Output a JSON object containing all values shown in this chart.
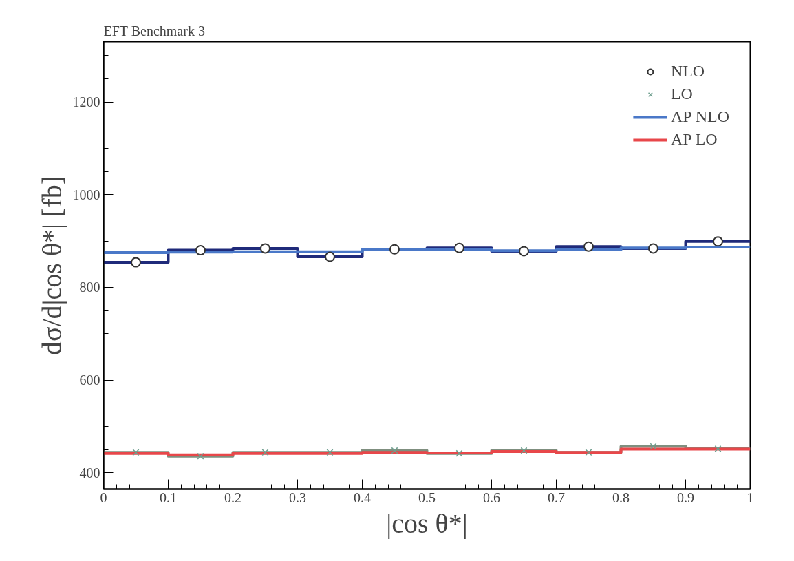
{
  "chart_data": {
    "type": "step",
    "title": "EFT Benchmark 3",
    "xlabel": "|cos θ*|",
    "ylabel": "dσ/d|cos θ*| [fb]",
    "xlim": [
      0,
      1
    ],
    "xticks": [
      0,
      0.1,
      0.2,
      0.3,
      0.4,
      0.5,
      0.6,
      0.7,
      0.8,
      0.9,
      1
    ],
    "ylim": [
      365,
      1330
    ],
    "yticks": [
      400,
      600,
      800,
      1000,
      1200
    ],
    "grid": false,
    "legend": "top right",
    "series": [
      {
        "color": "#1f2a7a",
        "x": [
          0,
          0.1,
          0.2,
          0.3,
          0.4,
          0.5,
          0.6,
          0.7,
          0.8,
          0.9,
          1
        ],
        "values": [
          854,
          880,
          884,
          866,
          882,
          885,
          878,
          888,
          884,
          899,
          899
        ]
      },
      {
        "color": "#7f8f7f",
        "x": [
          0,
          0.1,
          0.2,
          0.3,
          0.4,
          0.5,
          0.6,
          0.7,
          0.8,
          0.9,
          1
        ],
        "values": [
          444,
          436,
          444,
          444,
          448,
          442,
          448,
          444,
          457,
          452,
          452
        ]
      },
      {
        "name": "AP NLO",
        "color": "#4a78c8",
        "x": [
          0,
          0.1,
          0.2,
          0.3,
          0.4,
          0.5,
          0.6,
          0.7,
          0.8,
          0.9,
          1
        ],
        "values": [
          875,
          876,
          877,
          877,
          882,
          882,
          879,
          881,
          885,
          887,
          887
        ]
      },
      {
        "name": "AP LO",
        "color": "#e8474a",
        "x": [
          0,
          0.1,
          0.2,
          0.3,
          0.4,
          0.5,
          0.6,
          0.7,
          0.8,
          0.9,
          1
        ],
        "values": [
          442,
          439,
          442,
          442,
          444,
          443,
          446,
          444,
          451,
          451,
          451
        ]
      },
      {
        "type": "scatter",
        "name": "NLO",
        "marker": "circle",
        "color": "#333333",
        "x": [
          0.05,
          0.15,
          0.25,
          0.35,
          0.45,
          0.55,
          0.65,
          0.75,
          0.85,
          0.95
        ],
        "values": [
          854,
          880,
          884,
          866,
          882,
          885,
          878,
          888,
          884,
          899
        ]
      },
      {
        "type": "scatter",
        "name": "LO",
        "marker": "cross",
        "color": "#6f9f8f",
        "x": [
          0.05,
          0.15,
          0.25,
          0.35,
          0.45,
          0.55,
          0.65,
          0.75,
          0.85,
          0.95
        ],
        "values": [
          444,
          436,
          444,
          444,
          448,
          442,
          448,
          444,
          457,
          452
        ]
      }
    ]
  }
}
